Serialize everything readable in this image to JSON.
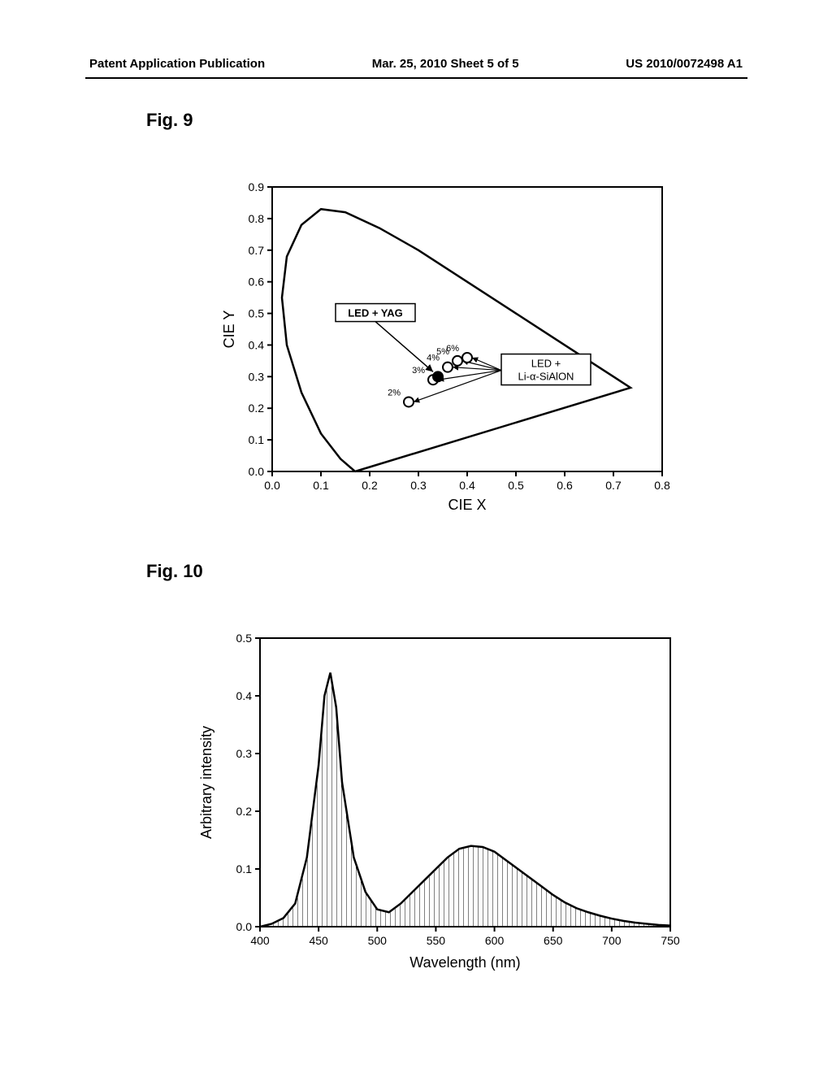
{
  "header": {
    "left": "Patent Application Publication",
    "center": "Mar. 25, 2010  Sheet 5 of 5",
    "right": "US 2010/0072498 A1"
  },
  "fig9": {
    "label": "Fig. 9",
    "xlabel": "CIE X",
    "ylabel": "CIE Y",
    "xlim": [
      0.0,
      0.8
    ],
    "ylim": [
      0.0,
      0.9
    ],
    "xticks": [
      "0.0",
      "0.1",
      "0.2",
      "0.3",
      "0.4",
      "0.5",
      "0.6",
      "0.7",
      "0.8"
    ],
    "yticks": [
      "0.0",
      "0.1",
      "0.2",
      "0.3",
      "0.4",
      "0.5",
      "0.6",
      "0.7",
      "0.8",
      "0.9"
    ],
    "box1": "LED + YAG",
    "box2_line1": "LED +",
    "box2_line2": "Li-α-SiAlON",
    "point_labels": [
      "2%",
      "3%",
      "4%",
      "5%",
      "6%"
    ],
    "open_points": [
      [
        0.28,
        0.22
      ],
      [
        0.33,
        0.29
      ],
      [
        0.36,
        0.33
      ],
      [
        0.38,
        0.35
      ],
      [
        0.4,
        0.36
      ]
    ],
    "filled_point": [
      0.34,
      0.3
    ],
    "axis_color": "#000000",
    "line_width": 2,
    "fontsize_tick": 14,
    "fontsize_label": 18
  },
  "fig10": {
    "label": "Fig. 10",
    "xlabel": "Wavelength (nm)",
    "ylabel": "Arbitrary intensity",
    "xlim": [
      400,
      750
    ],
    "ylim": [
      0.0,
      0.5
    ],
    "xticks": [
      "400",
      "450",
      "500",
      "550",
      "600",
      "650",
      "700",
      "750"
    ],
    "yticks": [
      "0.0",
      "0.1",
      "0.2",
      "0.3",
      "0.4",
      "0.5"
    ],
    "spectrum": [
      [
        400,
        0.0
      ],
      [
        410,
        0.005
      ],
      [
        420,
        0.015
      ],
      [
        430,
        0.04
      ],
      [
        440,
        0.12
      ],
      [
        450,
        0.28
      ],
      [
        455,
        0.4
      ],
      [
        460,
        0.44
      ],
      [
        465,
        0.38
      ],
      [
        470,
        0.25
      ],
      [
        480,
        0.12
      ],
      [
        490,
        0.06
      ],
      [
        500,
        0.03
      ],
      [
        510,
        0.025
      ],
      [
        520,
        0.04
      ],
      [
        530,
        0.06
      ],
      [
        540,
        0.08
      ],
      [
        550,
        0.1
      ],
      [
        560,
        0.12
      ],
      [
        570,
        0.135
      ],
      [
        580,
        0.14
      ],
      [
        590,
        0.138
      ],
      [
        600,
        0.13
      ],
      [
        610,
        0.115
      ],
      [
        620,
        0.1
      ],
      [
        630,
        0.085
      ],
      [
        640,
        0.07
      ],
      [
        650,
        0.055
      ],
      [
        660,
        0.042
      ],
      [
        670,
        0.032
      ],
      [
        680,
        0.025
      ],
      [
        690,
        0.019
      ],
      [
        700,
        0.014
      ],
      [
        710,
        0.01
      ],
      [
        720,
        0.007
      ],
      [
        730,
        0.005
      ],
      [
        740,
        0.003
      ],
      [
        750,
        0.002
      ]
    ],
    "axis_color": "#000000",
    "line_width": 2,
    "fontsize_tick": 14,
    "fontsize_label": 18,
    "hatch_spacing": 6
  }
}
